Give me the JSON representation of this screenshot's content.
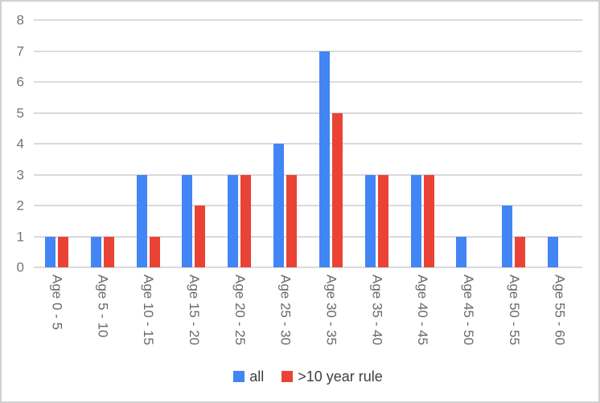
{
  "chart_data": {
    "type": "bar",
    "title": "",
    "xlabel": "",
    "ylabel": "",
    "categories": [
      "Age 0 - 5",
      "Age 5 - 10",
      "Age 10 - 15",
      "Age 15 - 20",
      "Age 20 - 25",
      "Age 25 - 30",
      "Age 30 - 35",
      "Age 35 - 40",
      "Age 40 - 45",
      "Age 45 - 50",
      "Age 50 - 55",
      "Age 55 - 60"
    ],
    "series": [
      {
        "name": "all",
        "color": "#4285f4",
        "values": [
          1,
          1,
          3,
          3,
          3,
          4,
          7,
          3,
          3,
          1,
          2,
          1
        ]
      },
      {
        "name": ">10 year rule",
        "color": "#ea4335",
        "values": [
          1,
          1,
          1,
          2,
          3,
          3,
          5,
          3,
          3,
          0,
          1,
          0
        ]
      }
    ],
    "ylim": [
      0,
      8
    ],
    "yticks": [
      0,
      1,
      2,
      3,
      4,
      5,
      6,
      7,
      8
    ],
    "grid": true,
    "legend_position": "bottom",
    "colors": {
      "gridline": "#dadada",
      "axis_text": "#757575",
      "legend_text": "#3c4043",
      "border": "#d2d2d2",
      "background": "#ffffff"
    }
  }
}
